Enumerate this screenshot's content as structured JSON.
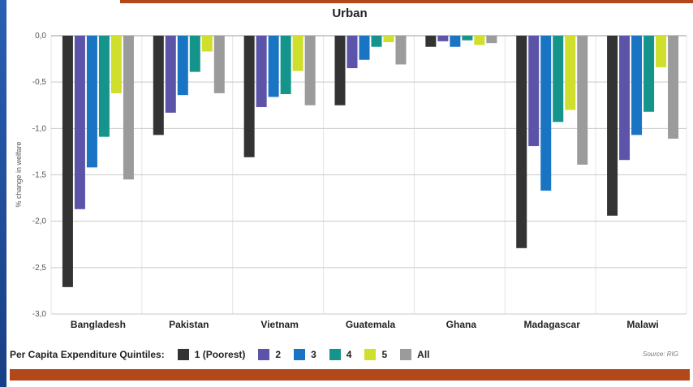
{
  "chart_data": {
    "type": "bar",
    "title": "Urban",
    "ylabel": "% change in welfare",
    "xlabel": "",
    "ylim": [
      -3.0,
      0.0
    ],
    "yticks": [
      "0,0",
      "-0,5",
      "-1,0",
      "-1,5",
      "-2,0",
      "-2,5",
      "-3,0"
    ],
    "ytick_values": [
      0.0,
      -0.5,
      -1.0,
      -1.5,
      -2.0,
      -2.5,
      -3.0
    ],
    "grid": true,
    "legend_position": "bottom",
    "categories": [
      "Bangladesh",
      "Pakistan",
      "Vietnam",
      "Guatemala",
      "Ghana",
      "Madagascar",
      "Malawi"
    ],
    "series": [
      {
        "name": "1 (Poorest)",
        "color": "#333333",
        "values": [
          -2.71,
          -1.07,
          -1.31,
          -0.75,
          -0.12,
          -2.29,
          -1.94
        ]
      },
      {
        "name": "2",
        "color": "#5c54a8",
        "values": [
          -1.87,
          -0.83,
          -0.77,
          -0.35,
          -0.06,
          -1.19,
          -1.34
        ]
      },
      {
        "name": "3",
        "color": "#1a74c4",
        "values": [
          -1.42,
          -0.64,
          -0.66,
          -0.26,
          -0.12,
          -1.67,
          -1.07
        ]
      },
      {
        "name": "4",
        "color": "#15948c",
        "values": [
          -1.09,
          -0.39,
          -0.63,
          -0.12,
          -0.05,
          -0.93,
          -0.82
        ]
      },
      {
        "name": "5",
        "color": "#cfdf2b",
        "values": [
          -0.62,
          -0.17,
          -0.38,
          -0.07,
          -0.1,
          -0.8,
          -0.34
        ]
      },
      {
        "name": "All",
        "color": "#9b9b9b",
        "values": [
          -1.55,
          -0.62,
          -0.75,
          -0.31,
          -0.08,
          -1.39,
          -1.11
        ]
      }
    ]
  },
  "legend": {
    "title": "Per Capita Expenditure Quintiles:"
  },
  "source": "Source: RIG"
}
